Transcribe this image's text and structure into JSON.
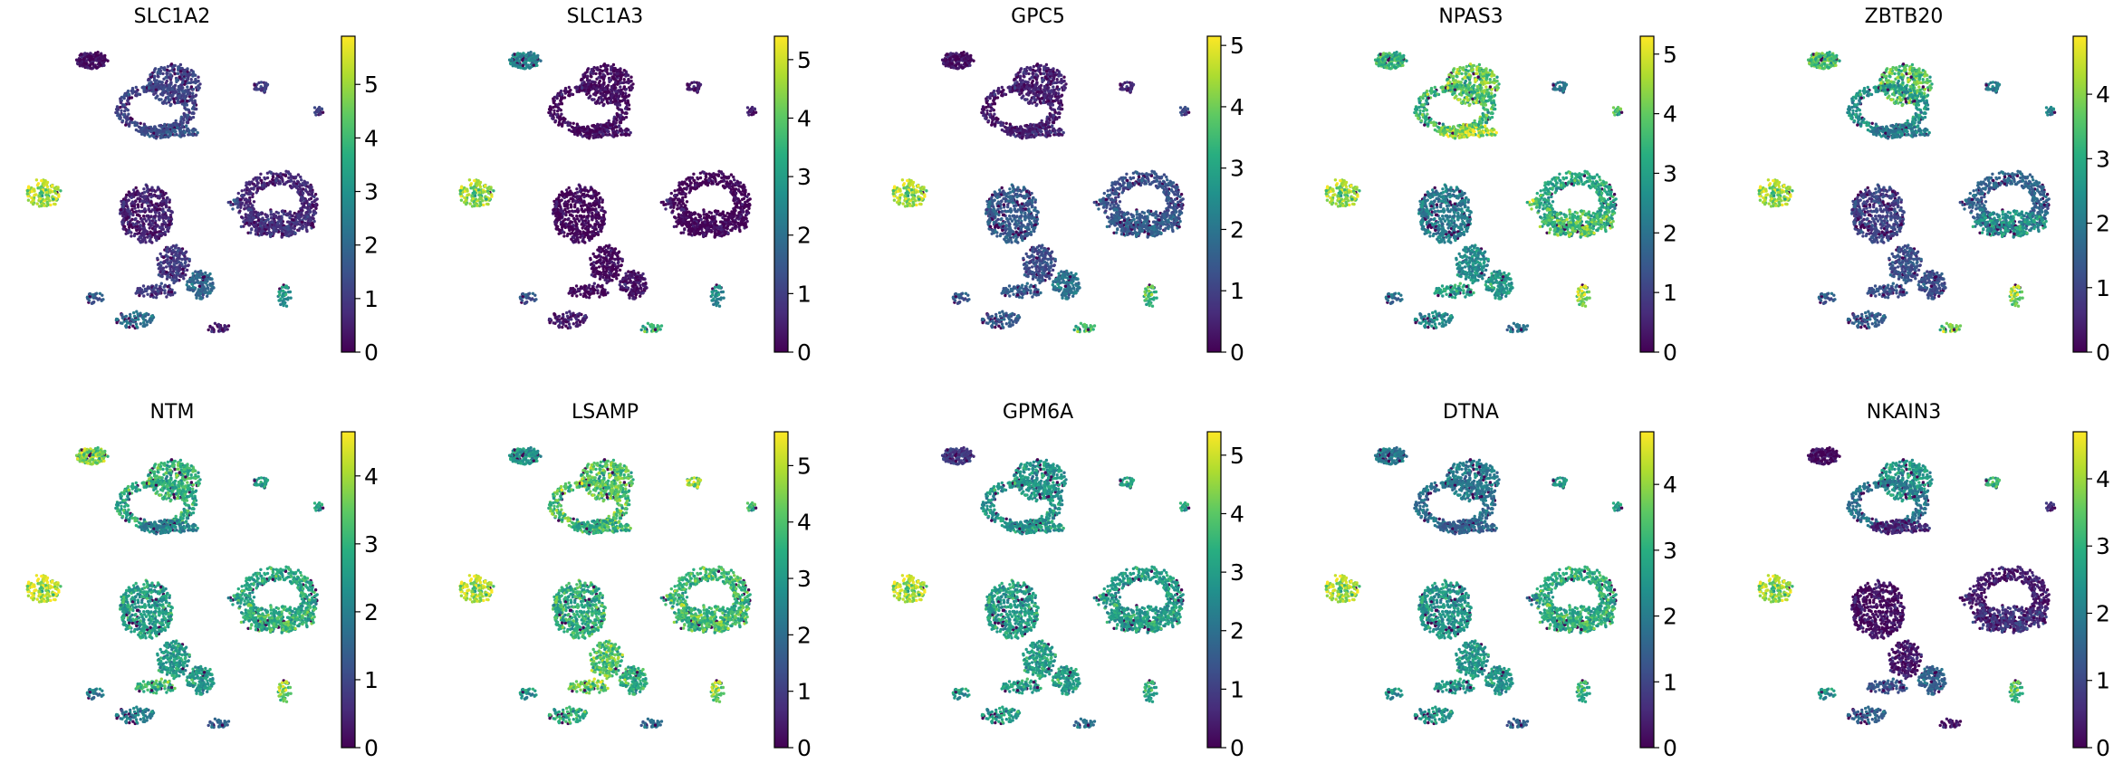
{
  "chart_data": {
    "type": "scatter",
    "description_kind": "umap-feature-plots",
    "colormap": "viridis",
    "layout": "2 rows x 5 columns",
    "clusters": [
      {
        "id": "A",
        "u": 2.18,
        "v": 9.58,
        "ru": 0.55,
        "rv": 0.28,
        "n": 150
      },
      {
        "id": "B1",
        "u": 4.9,
        "v": 8.74,
        "ru": 0.9,
        "rv": 0.7,
        "n": 320
      },
      {
        "id": "B2",
        "u": 4.32,
        "v": 7.9,
        "ru": 1.36,
        "rv": 0.84,
        "n": 320,
        "ring": 0.3
      },
      {
        "id": "B3",
        "u": 4.77,
        "v": 7.12,
        "ru": 1.0,
        "rv": 0.23,
        "n": 160
      },
      {
        "id": "C",
        "u": 7.86,
        "v": 8.65,
        "ru": 0.27,
        "rv": 0.19,
        "n": 35
      },
      {
        "id": "D",
        "u": 9.77,
        "v": 7.81,
        "ru": 0.18,
        "rv": 0.14,
        "n": 20
      },
      {
        "id": "E",
        "u": 0.55,
        "v": 5.02,
        "ru": 0.6,
        "rv": 0.47,
        "n": 140
      },
      {
        "id": "F1",
        "u": 4.0,
        "v": 4.28,
        "ru": 0.9,
        "rv": 1.0,
        "n": 500
      },
      {
        "id": "F2",
        "u": 4.9,
        "v": 2.56,
        "ru": 0.55,
        "rv": 0.65,
        "n": 200
      },
      {
        "id": "F3",
        "u": 5.82,
        "v": 1.86,
        "ru": 0.45,
        "rv": 0.47,
        "n": 160
      },
      {
        "id": "F4",
        "u": 4.32,
        "v": 1.63,
        "ru": 0.7,
        "rv": 0.23,
        "n": 90
      },
      {
        "id": "G",
        "u": 8.4,
        "v": 4.65,
        "ru": 1.36,
        "rv": 1.1,
        "n": 520,
        "ring": 0.4
      },
      {
        "id": "G2",
        "u": 8.4,
        "v": 3.95,
        "ru": 1.27,
        "rv": 0.47,
        "n": 220
      },
      {
        "id": "M",
        "u": 6.95,
        "v": 4.65,
        "ru": 0.18,
        "rv": 0.18,
        "n": 15
      },
      {
        "id": "I",
        "u": 2.27,
        "v": 1.4,
        "ru": 0.32,
        "rv": 0.19,
        "n": 30
      },
      {
        "id": "J",
        "u": 3.64,
        "v": 0.65,
        "ru": 0.68,
        "rv": 0.28,
        "n": 80
      },
      {
        "id": "K",
        "u": 6.45,
        "v": 0.37,
        "ru": 0.36,
        "rv": 0.14,
        "n": 30
      },
      {
        "id": "L",
        "u": 8.64,
        "v": 1.49,
        "ru": 0.23,
        "rv": 0.37,
        "n": 45
      }
    ],
    "panels": [
      {
        "title": "SLC1A2",
        "vmax": 5.9,
        "ticks": [
          "0",
          "1",
          "2",
          "3",
          "4",
          "5"
        ],
        "levels": {
          "A": 0.3,
          "B1": 1.2,
          "B2": 1.2,
          "B3": 1.5,
          "C": 1.0,
          "D": 1.0,
          "E": 5.2,
          "F1": 0.6,
          "F2": 1.0,
          "F3": 2.0,
          "F4": 1.0,
          "G": 0.7,
          "G2": 0.9,
          "M": 1.5,
          "I": 1.8,
          "J": 2.2,
          "K": 0.5,
          "L": 3.0
        }
      },
      {
        "title": "SLC1A3",
        "vmax": 5.4,
        "ticks": [
          "0",
          "1",
          "2",
          "3",
          "4",
          "5"
        ],
        "levels": {
          "A": 2.5,
          "B1": 0.2,
          "B2": 0.2,
          "B3": 0.2,
          "C": 0.3,
          "D": 0.3,
          "E": 4.5,
          "F1": 0.1,
          "F2": 0.1,
          "F3": 0.3,
          "F4": 0.1,
          "G": 0.1,
          "G2": 0.1,
          "M": 0.5,
          "I": 1.5,
          "J": 0.5,
          "K": 3.5,
          "L": 2.5
        }
      },
      {
        "title": "GPC5",
        "vmax": 5.15,
        "ticks": [
          "0",
          "1",
          "2",
          "3",
          "4",
          "5"
        ],
        "levels": {
          "A": 0.3,
          "B1": 0.5,
          "B2": 0.4,
          "B3": 0.5,
          "C": 0.5,
          "D": 1.0,
          "E": 4.5,
          "F1": 1.5,
          "F2": 1.2,
          "F3": 2.0,
          "F4": 1.5,
          "G": 1.3,
          "G2": 1.6,
          "M": 1.5,
          "I": 1.5,
          "J": 1.5,
          "K": 3.5,
          "L": 3.5
        }
      },
      {
        "title": "NPAS3",
        "vmax": 5.3,
        "ticks": [
          "0",
          "1",
          "2",
          "3",
          "4",
          "5"
        ],
        "levels": {
          "A": 3.5,
          "B1": 4.0,
          "B2": 3.5,
          "B3": 4.5,
          "C": 2.0,
          "D": 3.5,
          "E": 4.5,
          "F1": 2.2,
          "F2": 2.5,
          "F3": 2.8,
          "F4": 3.0,
          "G": 3.2,
          "G2": 3.8,
          "M": 4.0,
          "I": 2.0,
          "J": 2.5,
          "K": 2.0,
          "L": 4.5
        }
      },
      {
        "title": "ZBTB20",
        "vmax": 4.9,
        "ticks": [
          "0",
          "1",
          "2",
          "3",
          "4"
        ],
        "levels": {
          "A": 3.5,
          "B1": 3.5,
          "B2": 2.5,
          "B3": 2.0,
          "C": 2.0,
          "D": 2.0,
          "E": 4.2,
          "F1": 1.0,
          "F2": 1.2,
          "F3": 1.2,
          "F4": 1.2,
          "G": 1.6,
          "G2": 2.6,
          "M": 1.5,
          "I": 1.5,
          "J": 1.5,
          "K": 3.8,
          "L": 4.0
        }
      },
      {
        "title": "NTM",
        "vmax": 4.65,
        "ticks": [
          "0",
          "1",
          "2",
          "3",
          "4"
        ],
        "levels": {
          "A": 3.8,
          "B1": 3.0,
          "B2": 2.8,
          "B3": 2.0,
          "C": 2.5,
          "D": 2.5,
          "E": 4.3,
          "F1": 2.6,
          "F2": 2.5,
          "F3": 2.5,
          "F4": 3.0,
          "G": 2.8,
          "G2": 3.0,
          "M": 2.5,
          "I": 2.0,
          "J": 2.0,
          "K": 1.5,
          "L": 3.7
        }
      },
      {
        "title": "LSAMP",
        "vmax": 5.6,
        "ticks": [
          "0",
          "1",
          "2",
          "3",
          "4",
          "5"
        ],
        "levels": {
          "A": 3.0,
          "B1": 4.0,
          "B2": 4.0,
          "B3": 3.5,
          "C": 4.5,
          "D": 3.5,
          "E": 5.0,
          "F1": 3.5,
          "F2": 4.0,
          "F3": 3.5,
          "F4": 4.2,
          "G": 3.8,
          "G2": 3.8,
          "M": 3.5,
          "I": 3.0,
          "J": 3.5,
          "K": 2.0,
          "L": 4.5
        }
      },
      {
        "title": "GPM6A",
        "vmax": 5.4,
        "ticks": [
          "0",
          "1",
          "2",
          "3",
          "4",
          "5"
        ],
        "levels": {
          "A": 1.0,
          "B1": 2.8,
          "B2": 2.8,
          "B3": 2.8,
          "C": 3.0,
          "D": 3.0,
          "E": 4.8,
          "F1": 3.0,
          "F2": 3.0,
          "F3": 3.0,
          "F4": 3.0,
          "G": 3.0,
          "G2": 3.0,
          "M": 3.0,
          "I": 3.0,
          "J": 3.0,
          "K": 2.0,
          "L": 3.2
        }
      },
      {
        "title": "DTNA",
        "vmax": 4.8,
        "ticks": [
          "0",
          "1",
          "2",
          "3",
          "4"
        ],
        "levels": {
          "A": 2.0,
          "B1": 2.0,
          "B2": 1.8,
          "B3": 1.5,
          "C": 2.5,
          "D": 2.5,
          "E": 4.2,
          "F1": 2.5,
          "F2": 2.5,
          "F3": 2.5,
          "F4": 2.5,
          "G": 3.0,
          "G2": 3.0,
          "M": 2.0,
          "I": 2.5,
          "J": 2.5,
          "K": 1.5,
          "L": 3.0
        }
      },
      {
        "title": "NKAIN3",
        "vmax": 4.7,
        "ticks": [
          "0",
          "1",
          "2",
          "3",
          "4"
        ],
        "levels": {
          "A": 0.2,
          "B1": 2.5,
          "B2": 1.8,
          "B3": 0.5,
          "C": 3.0,
          "D": 0.5,
          "E": 4.0,
          "F1": 0.2,
          "F2": 0.3,
          "F3": 1.5,
          "F4": 1.2,
          "G": 0.4,
          "G2": 0.8,
          "M": 0.5,
          "I": 2.5,
          "J": 1.5,
          "K": 0.3,
          "L": 3.2
        }
      }
    ]
  }
}
